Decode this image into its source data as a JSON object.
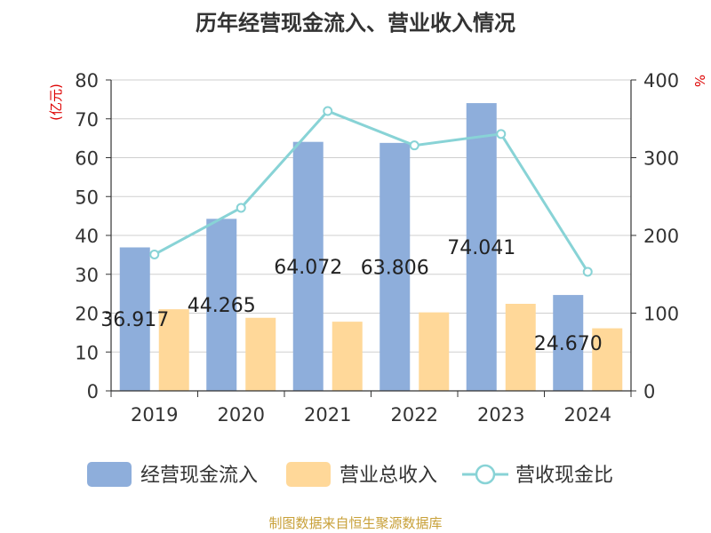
{
  "chart_data": {
    "type": "bar+line",
    "title": "历年经营现金流入、营业收入情况",
    "categories": [
      "2019",
      "2020",
      "2021",
      "2022",
      "2023",
      "2024"
    ],
    "left_axis": {
      "unit_label": "(亿元)",
      "ylim": [
        0,
        80
      ],
      "ticks": [
        0,
        10,
        20,
        30,
        40,
        50,
        60,
        70,
        80
      ]
    },
    "right_axis": {
      "unit_label": "%",
      "ylim": [
        0,
        400
      ],
      "ticks": [
        0,
        100,
        200,
        300,
        400
      ]
    },
    "series": [
      {
        "name": "经营现金流入",
        "type": "bar",
        "axis": "left",
        "color": "#8eaedb",
        "values": [
          36.917,
          44.265,
          64.072,
          63.806,
          74.041,
          24.67
        ],
        "labels": [
          "36.917",
          "44.265",
          "64.072",
          "63.806",
          "74.041",
          "24.670"
        ]
      },
      {
        "name": "营业总收入",
        "type": "bar",
        "axis": "left",
        "color": "#ffd899",
        "values": [
          21.0,
          18.8,
          17.8,
          20.2,
          22.4,
          16.1
        ]
      },
      {
        "name": "营收现金比",
        "type": "line",
        "axis": "right",
        "color": "#88d3d6",
        "values": [
          175.5,
          235.5,
          360.0,
          315.8,
          330.5,
          153.2
        ]
      }
    ],
    "legend": [
      {
        "name": "经营现金流入",
        "shape": "bar",
        "color": "#8eaedb"
      },
      {
        "name": "营业总收入",
        "shape": "bar",
        "color": "#ffd899"
      },
      {
        "name": "营收现金比",
        "shape": "line",
        "color": "#88d3d6"
      }
    ],
    "source": "制图数据来自恒生聚源数据库"
  }
}
